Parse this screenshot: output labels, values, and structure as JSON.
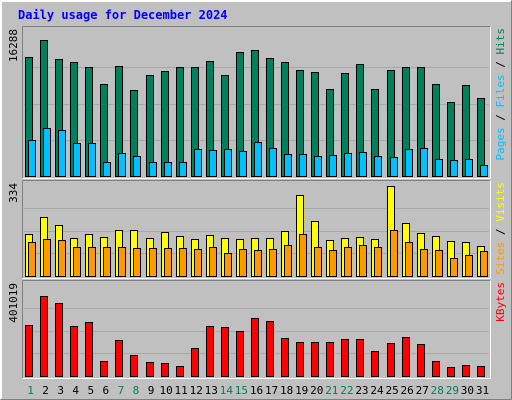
{
  "chart_data": [
    {
      "type": "bar",
      "title": "Daily usage for December 2024",
      "ylabel_parts": [
        "Pages",
        "Files",
        "Hits"
      ],
      "ymax_label": "16288",
      "ylim": [
        0,
        16288
      ],
      "categories": [
        "1",
        "2",
        "3",
        "4",
        "5",
        "6",
        "7",
        "8",
        "9",
        "10",
        "11",
        "12",
        "13",
        "14",
        "15",
        "16",
        "17",
        "18",
        "19",
        "20",
        "21",
        "22",
        "23",
        "24",
        "25",
        "26",
        "27",
        "28",
        "29",
        "30",
        "31"
      ],
      "weekend_days": [
        "1",
        "7",
        "8",
        "14",
        "15",
        "21",
        "22",
        "28",
        "29"
      ],
      "series": [
        {
          "name": "Hits",
          "color": "#00805c",
          "values": [
            13400,
            15300,
            13100,
            12800,
            12300,
            10300,
            12400,
            9700,
            11300,
            11800,
            12300,
            12300,
            12900,
            11300,
            13900,
            14200,
            13300,
            12800,
            11900,
            11700,
            9800,
            11600,
            12600,
            9800,
            11900,
            12300,
            12300,
            10300,
            8300,
            10200,
            8800
          ]
        },
        {
          "name": "Files",
          "color": "#00c0ff",
          "values": [
            4000,
            5400,
            5200,
            3700,
            3700,
            1600,
            2600,
            2200,
            1600,
            1600,
            1600,
            3000,
            2900,
            3000,
            2800,
            3800,
            3200,
            2500,
            2500,
            2300,
            2400,
            2600,
            2700,
            2300,
            2100,
            3000,
            3200,
            1900,
            1800,
            1900,
            1200
          ]
        },
        {
          "name": "Pages",
          "color": "#00c0ff",
          "values": [
            0,
            0,
            0,
            0,
            0,
            0,
            0,
            0,
            0,
            0,
            0,
            0,
            0,
            0,
            0,
            0,
            0,
            0,
            0,
            0,
            0,
            0,
            0,
            0,
            0,
            0,
            0,
            0,
            0,
            0,
            0
          ]
        }
      ]
    },
    {
      "type": "bar",
      "ylabel_parts": [
        "Sites",
        "Visits"
      ],
      "ymax_label": "334",
      "ylim": [
        0,
        334
      ],
      "categories": [
        "1",
        "2",
        "3",
        "4",
        "5",
        "6",
        "7",
        "8",
        "9",
        "10",
        "11",
        "12",
        "13",
        "14",
        "15",
        "16",
        "17",
        "18",
        "19",
        "20",
        "21",
        "22",
        "23",
        "24",
        "25",
        "26",
        "27",
        "28",
        "29",
        "30",
        "31"
      ],
      "series": [
        {
          "name": "Visits",
          "color": "#ffff00",
          "values": [
            155,
            218,
            188,
            138,
            155,
            143,
            168,
            168,
            140,
            160,
            145,
            135,
            151,
            140,
            137,
            140,
            140,
            166,
            297,
            201,
            133,
            138,
            143,
            136,
            330,
            195,
            159,
            148,
            128,
            124,
            109
          ]
        },
        {
          "name": "Sites",
          "color": "#ff9900",
          "values": [
            124,
            135,
            131,
            105,
            108,
            107,
            105,
            102,
            104,
            104,
            102,
            98,
            105,
            85,
            100,
            96,
            100,
            115,
            153,
            107,
            97,
            107,
            113,
            107,
            170,
            123,
            99,
            97,
            67,
            76,
            90
          ]
        }
      ]
    },
    {
      "type": "bar",
      "ylabel_parts": [
        "KBytes"
      ],
      "ymax_label": "401019",
      "ylim": [
        0,
        401019
      ],
      "categories": [
        "1",
        "2",
        "3",
        "4",
        "5",
        "6",
        "7",
        "8",
        "9",
        "10",
        "11",
        "12",
        "13",
        "14",
        "15",
        "16",
        "17",
        "18",
        "19",
        "20",
        "21",
        "22",
        "23",
        "24",
        "25",
        "26",
        "27",
        "28",
        "29",
        "30",
        "31"
      ],
      "series": [
        {
          "name": "KBytes",
          "color": "#ff0000",
          "values": [
            225000,
            352000,
            323000,
            222000,
            237000,
            66000,
            159000,
            92000,
            62000,
            57000,
            46000,
            122000,
            220000,
            217000,
            199000,
            255000,
            243000,
            168000,
            151000,
            148000,
            150000,
            163000,
            163000,
            110000,
            145000,
            174000,
            140000,
            68000,
            40000,
            47000,
            46000
          ]
        }
      ]
    }
  ]
}
